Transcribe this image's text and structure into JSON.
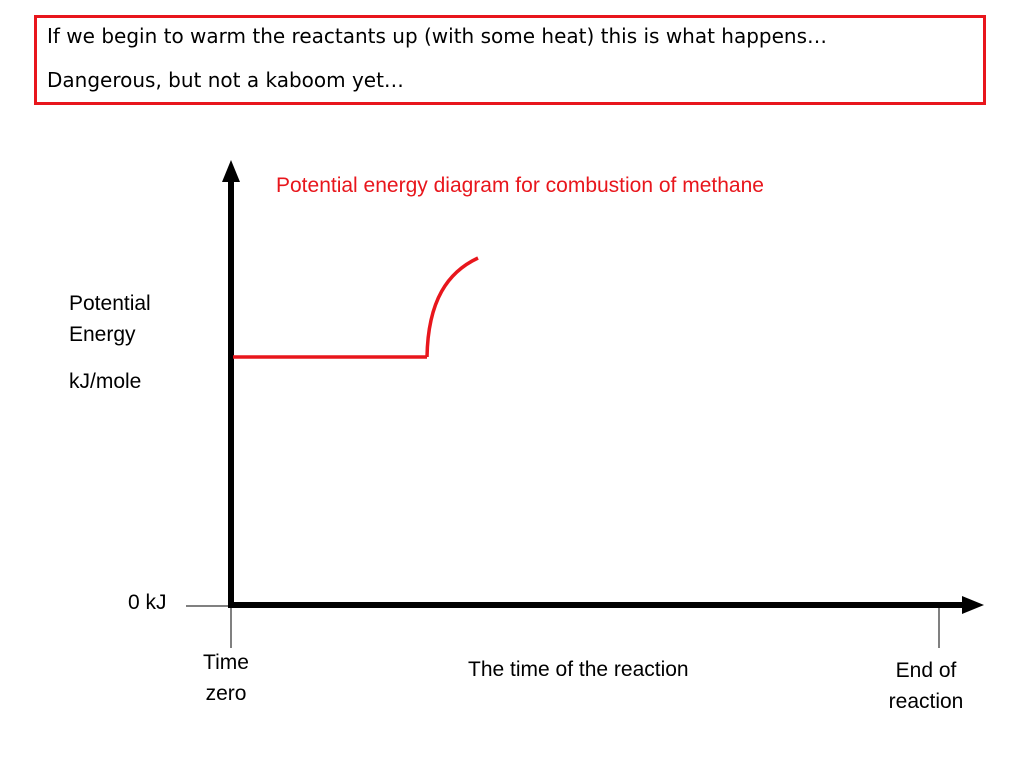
{
  "note": {
    "line1": "If we begin to warm the reactants up (with some heat) this is what happens…",
    "line2": "Dangerous, but not a kaboom yet…"
  },
  "diagram": {
    "title": "Potential energy diagram for combustion of methane",
    "y_axis_label_line1": "Potential",
    "y_axis_label_line2": "Energy",
    "y_axis_unit": "kJ/mole",
    "zero_label": "0 kJ",
    "x_start_label_line1": "Time",
    "x_start_label_line2": "zero",
    "x_axis_label": "The time of the reaction",
    "x_end_label_line1": "End of",
    "x_end_label_line2": "reaction",
    "colors": {
      "curve": "#e8161c",
      "axis": "#000000",
      "title": "#e8161c",
      "border": "#e8161c"
    }
  }
}
